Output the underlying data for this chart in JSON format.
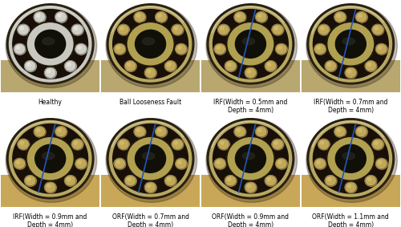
{
  "grid_rows": 2,
  "grid_cols": 4,
  "labels": [
    "Healthy",
    "Ball Looseness Fault",
    "IRF(Width = 0.5mm and\nDepth = 4mm)",
    "IRF(Width = 0.7mm and\nDepth = 4mm)",
    "IRF(Width = 0.9mm and\nDepth = 4mm)",
    "ORF(Width = 0.7mm and\nDepth = 4mm)",
    "ORF(Width = 0.9mm and\nDepth = 4mm)",
    "ORF(Width = 1.1mm and\nDepth = 4mm)"
  ],
  "has_line": [
    false,
    false,
    true,
    true,
    true,
    true,
    true,
    true
  ],
  "line_color": "#2255bb",
  "bg_color": "#ffffff",
  "label_fontsize": 5.5,
  "cell_bg_row0": [
    "#c8c0a8",
    "#c0b898",
    "#b8b098",
    "#b8b098"
  ],
  "cell_bg_row1": [
    "#b8a870",
    "#a89858",
    "#b0a868",
    "#b8b070"
  ]
}
